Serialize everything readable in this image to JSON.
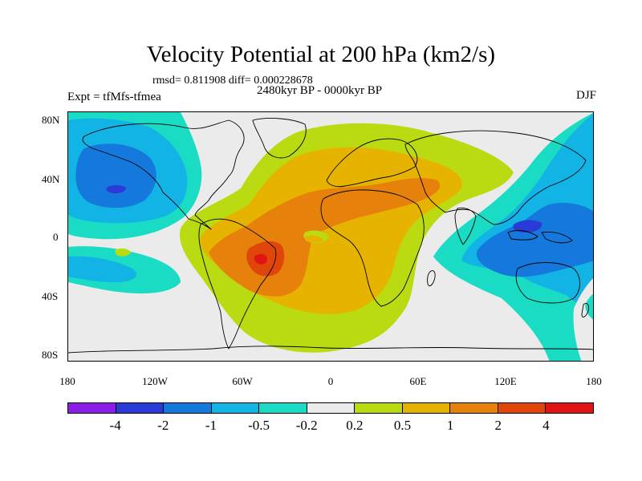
{
  "title": "Velocity Potential at 200 hPa (km2/s)",
  "stats": "rmsd= 0.811908 diff= 0.000228678",
  "experiment": "Expt = tfMfs-tfmea",
  "period": "2480kyr BP - 0000kyr BP",
  "season": "DJF",
  "y_axis_labels": [
    "80N",
    "40N",
    "0",
    "40S",
    "80S"
  ],
  "x_axis_labels": [
    "180",
    "120W",
    "60W",
    "0",
    "60E",
    "120E",
    "180"
  ],
  "colorbar": {
    "colors": [
      "#8a1ee6",
      "#2a3ad6",
      "#1478dc",
      "#12b4e6",
      "#1adcc4",
      "#ebebeb",
      "#bada12",
      "#e6b400",
      "#e6820c",
      "#e0460a",
      "#e01414"
    ],
    "labels": [
      "-4",
      "-2",
      "-1",
      "-0.5",
      "-0.2",
      "0.2",
      "0.5",
      "1",
      "2",
      "4"
    ]
  },
  "chart_data": {
    "type": "heatmap",
    "variable": "Velocity Potential at 200 hPa",
    "units": "km2/s",
    "season": "DJF",
    "lon_range": [
      -180,
      180
    ],
    "lat_range": [
      -90,
      90
    ],
    "levels": [
      -4,
      -2,
      -1,
      -0.5,
      -0.2,
      0.2,
      0.5,
      1,
      2,
      4
    ],
    "features": [
      {
        "name": "positive anomaly centre over tropical South America",
        "lon": -50,
        "lat": -10,
        "value": 2.5
      },
      {
        "name": "positive anomaly over Africa and Middle East",
        "lon": 30,
        "lat": 20,
        "value": 1.5
      },
      {
        "name": "negative anomaly centre over Maritime Continent",
        "lon": 125,
        "lat": 5,
        "value": -2.5
      },
      {
        "name": "negative anomaly centre over North Pacific",
        "lon": -150,
        "lat": 35,
        "value": -2.5
      },
      {
        "name": "negative anomaly over South Pacific",
        "lon": -140,
        "lat": -30,
        "value": -0.5
      }
    ]
  }
}
